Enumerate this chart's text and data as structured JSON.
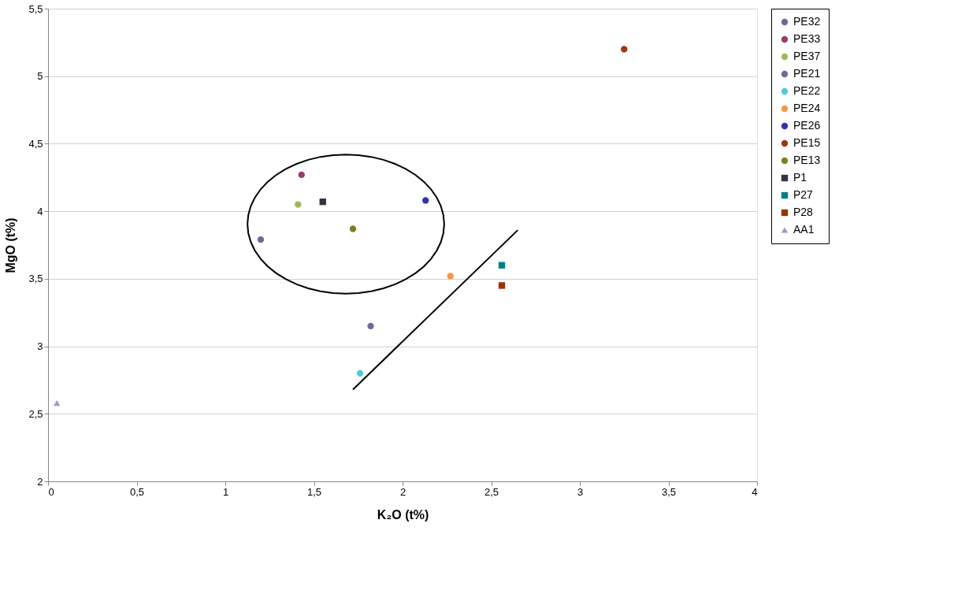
{
  "chart_data": {
    "type": "scatter",
    "xlabel": "K₂O (t%)",
    "ylabel": "MgO (t%)",
    "xlim": [
      0,
      4
    ],
    "ylim": [
      2,
      5.5
    ],
    "xticks": [
      0,
      {
        "value": 0.5,
        "label": "0,5"
      },
      1,
      {
        "value": 1.5,
        "label": "1,5"
      },
      2,
      {
        "value": 2.5,
        "label": "2,5"
      },
      3,
      {
        "value": 3.5,
        "label": "3,5"
      },
      4
    ],
    "yticks": [
      2,
      {
        "value": 2.5,
        "label": "2,5"
      },
      3,
      {
        "value": 3.5,
        "label": "3,5"
      },
      4,
      {
        "value": 4.5,
        "label": "4,5"
      },
      5,
      {
        "value": 5.5,
        "label": "5,5"
      }
    ],
    "grid": "y",
    "legend": "right",
    "series": [
      {
        "name": "PE32",
        "color": "#6b6b9b",
        "marker": "circle",
        "x": [
          1.2
        ],
        "values": [
          3.79
        ]
      },
      {
        "name": "PE33",
        "color": "#9b3a6b",
        "marker": "circle",
        "x": [
          1.43
        ],
        "values": [
          4.27
        ]
      },
      {
        "name": "PE37",
        "color": "#9bbb59",
        "marker": "circle",
        "x": [
          1.41
        ],
        "values": [
          4.05
        ]
      },
      {
        "name": "PE21",
        "color": "#6b6b9b",
        "marker": "circle",
        "x": [
          1.82
        ],
        "values": [
          3.15
        ]
      },
      {
        "name": "PE22",
        "color": "#4bcdd6",
        "marker": "circle",
        "x": [
          1.76
        ],
        "values": [
          2.8
        ]
      },
      {
        "name": "PE24",
        "color": "#f79646",
        "marker": "circle",
        "x": [
          2.27
        ],
        "values": [
          3.52
        ]
      },
      {
        "name": "PE26",
        "color": "#3333aa",
        "marker": "circle",
        "x": [
          2.13
        ],
        "values": [
          4.08
        ]
      },
      {
        "name": "PE15",
        "color": "#9b3a0a",
        "marker": "circle",
        "x": [
          3.25
        ],
        "values": [
          5.2
        ]
      },
      {
        "name": "PE13",
        "color": "#7f7f1f",
        "marker": "circle",
        "x": [
          1.72
        ],
        "values": [
          3.87
        ]
      },
      {
        "name": "P1",
        "color": "#333344",
        "marker": "square",
        "x": [
          1.55
        ],
        "values": [
          4.07
        ]
      },
      {
        "name": "P27",
        "color": "#008080",
        "marker": "square",
        "x": [
          2.56
        ],
        "values": [
          3.6
        ]
      },
      {
        "name": "P28",
        "color": "#993300",
        "marker": "square",
        "x": [
          2.56
        ],
        "values": [
          3.45
        ]
      },
      {
        "name": "AA1",
        "color": "#9999cc",
        "marker": "triangle",
        "x": [
          0.05
        ],
        "values": [
          2.58
        ]
      },
      {
        "type": "line",
        "color": "#000000",
        "marker": "none",
        "x": [
          1.72,
          2.65
        ],
        "values": [
          2.68,
          3.86
        ]
      }
    ]
  }
}
